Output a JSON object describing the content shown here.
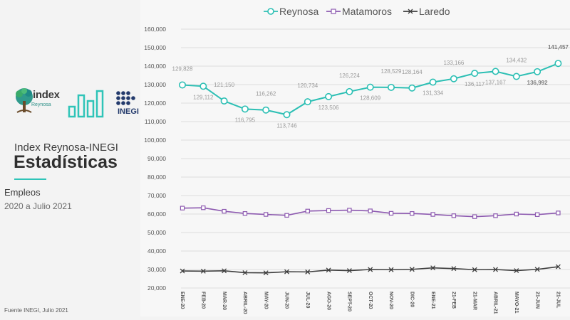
{
  "header": {
    "org_title": "Index Reynosa-INEGI",
    "section_title": "Estadísticas",
    "topic": "Empleos",
    "period": "2020 a Julio 2021",
    "logo_index_text": "index",
    "logo_index_sub": "Reynosa",
    "logo_inegi_text": "INEGI"
  },
  "footer": {
    "source": "Fuente INEGI, Julio 2021"
  },
  "colors": {
    "reynosa": "#2cbfb4",
    "matamoros": "#8d5ab0",
    "laredo": "#3e3e3e",
    "accent": "#2fc4b8",
    "grid": "#dedede"
  },
  "chart_data": {
    "type": "line",
    "categories": [
      "ENE-20",
      "FEB-20",
      "MAR-20",
      "ABRIL-20",
      "MAY-20",
      "JUN-20",
      "JUL-20",
      "AGO-20",
      "SEPT-20",
      "OCT-20",
      "NOV-20",
      "DIC-20",
      "ENE-21",
      "21-FEB",
      "21-MAR",
      "ABRIL-21",
      "MAYO-21",
      "21-JUN",
      "21-JUL"
    ],
    "ylim": [
      20000,
      160000
    ],
    "yticks": [
      "20,000",
      "30,000",
      "40,000",
      "50,000",
      "60,000",
      "70,000",
      "80,000",
      "90,000",
      "100,000",
      "110,000",
      "120,000",
      "130,000",
      "140,000",
      "150,000",
      "160,000"
    ],
    "ytick_values": [
      20000,
      30000,
      40000,
      50000,
      60000,
      70000,
      80000,
      90000,
      100000,
      110000,
      120000,
      130000,
      140000,
      150000,
      160000
    ],
    "legend_position": "top",
    "series": [
      {
        "name": "Reynosa",
        "marker": "circle",
        "values": [
          129828,
          129112,
          121150,
          116795,
          116262,
          113746,
          120734,
          123506,
          126224,
          128609,
          128529,
          128164,
          131334,
          133166,
          136117,
          137167,
          134432,
          136992,
          141457
        ],
        "data_labels": [
          "129,828",
          "129,112",
          "121,150",
          "116,795",
          "116,262",
          "113,746",
          "120,734",
          "123,506",
          "126,224",
          "128,609",
          "128,529",
          "128,164",
          "131,334",
          "133,166",
          "136,117",
          "137,167",
          "134,432",
          "136,992",
          "141,457"
        ]
      },
      {
        "name": "Matamoros",
        "marker": "square",
        "values": [
          63200,
          63400,
          61500,
          60300,
          59800,
          59300,
          61600,
          61900,
          62100,
          61700,
          60400,
          60300,
          59800,
          59100,
          58600,
          59100,
          60000,
          59700,
          60600
        ]
      },
      {
        "name": "Laredo",
        "marker": "x",
        "values": [
          29200,
          29100,
          29300,
          28300,
          28200,
          28800,
          28700,
          29700,
          29400,
          30000,
          29900,
          30100,
          30900,
          30500,
          29900,
          30000,
          29400,
          30100,
          31500
        ]
      }
    ]
  }
}
